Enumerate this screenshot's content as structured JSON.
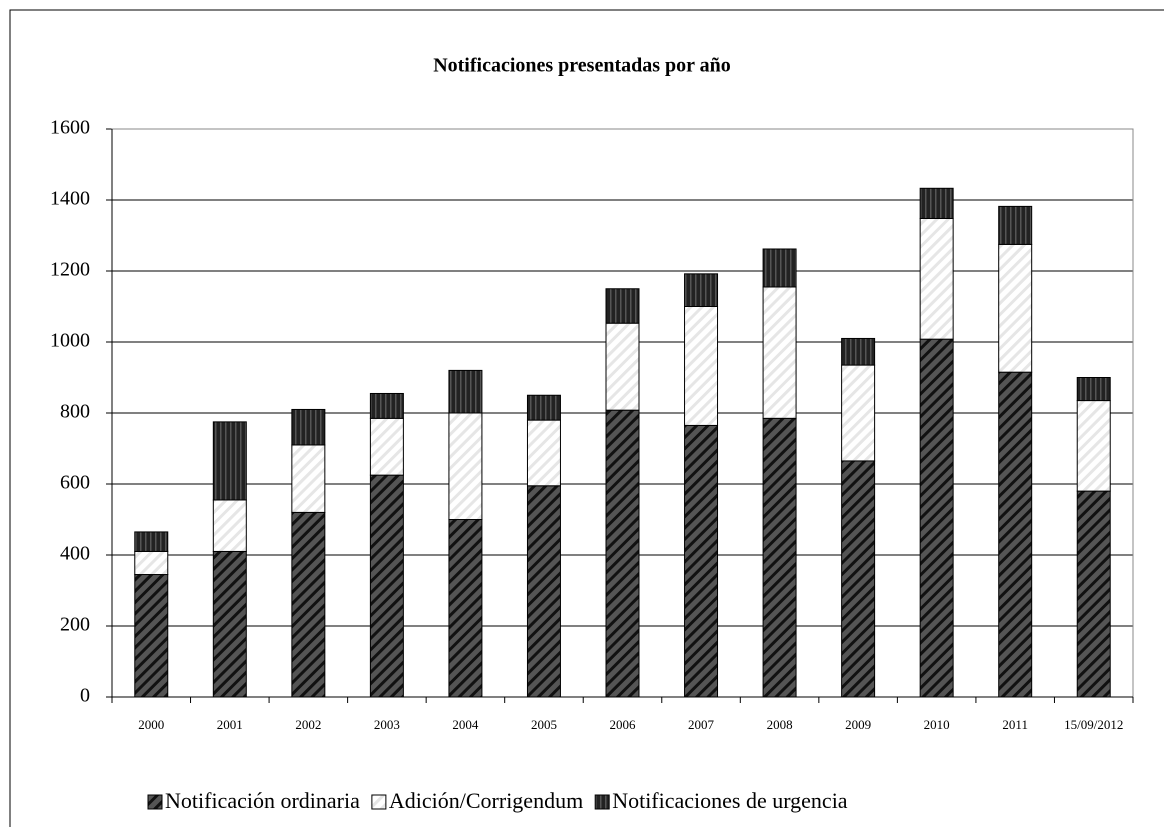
{
  "chart_data": {
    "type": "stacked_bar",
    "title": "Notificaciones presentadas por año",
    "categories": [
      "2000",
      "2001",
      "2002",
      "2003",
      "2004",
      "2005",
      "2006",
      "2007",
      "2008",
      "2009",
      "2010",
      "2011",
      "15/09/2012"
    ],
    "series": [
      {
        "name": "Notificación ordinaria",
        "color": "#555555",
        "values": [
          345,
          410,
          520,
          625,
          500,
          595,
          808,
          765,
          785,
          665,
          1008,
          915,
          580
        ]
      },
      {
        "name": "Adición/Corrigendum",
        "color": "#e6e6e6",
        "values": [
          65,
          145,
          190,
          160,
          300,
          185,
          245,
          335,
          370,
          270,
          340,
          360,
          255
        ]
      },
      {
        "name": "Notificaciones de urgencia",
        "color": "#222222",
        "values": [
          55,
          220,
          100,
          70,
          120,
          70,
          97,
          92,
          107,
          75,
          85,
          107,
          65
        ]
      }
    ],
    "ylim": [
      0,
      1600
    ],
    "yticks": [
      0,
      200,
      400,
      600,
      800,
      1000,
      1200,
      1400,
      1600
    ],
    "grid": true,
    "legend": "bottom"
  }
}
